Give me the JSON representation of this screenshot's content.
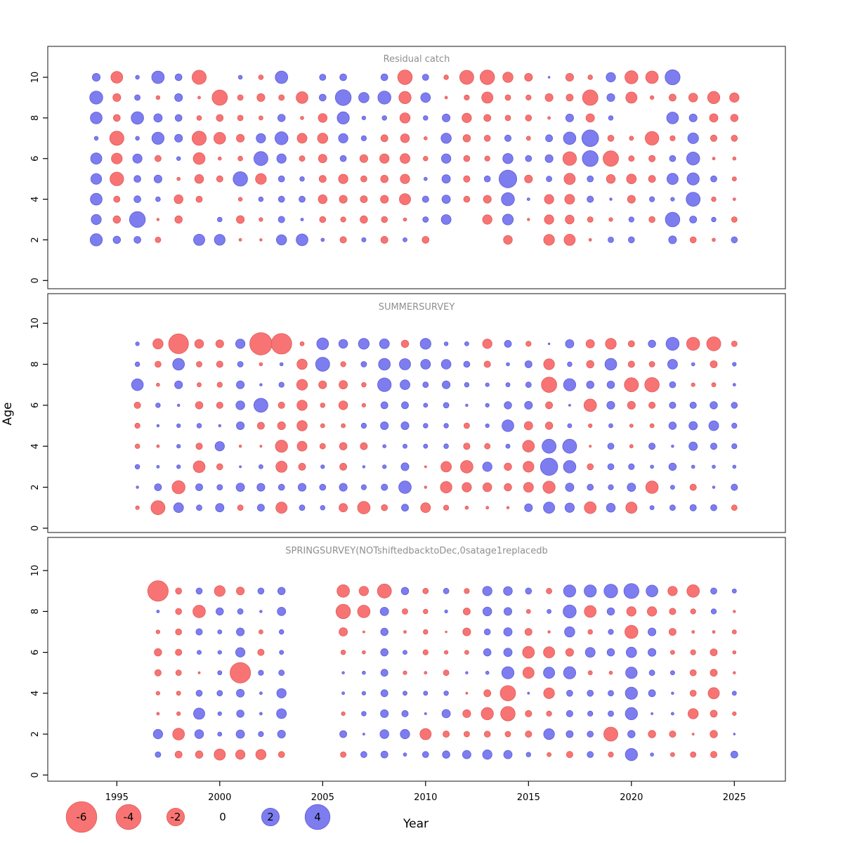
{
  "axes": {
    "xlabel": "Year",
    "ylabel": "Age",
    "x_ticks": [
      1995,
      2000,
      2005,
      2010,
      2015,
      2020,
      2025
    ],
    "y_ticks": [
      0,
      2,
      4,
      6,
      8,
      10
    ]
  },
  "colors": {
    "negative_fill": "#f87474",
    "negative_stroke": "#e05a55",
    "positive_fill": "#7d7df0",
    "positive_stroke": "#5c5cd8",
    "title_gray": "#8f8f8f",
    "axis_black": "#000000"
  },
  "legend": {
    "values": [
      -6,
      -4,
      -2,
      0,
      2,
      4
    ]
  },
  "chart_data": [
    {
      "type": "bubble",
      "title": "Residual catch",
      "ages": [
        10,
        9,
        8,
        7,
        6,
        5,
        4,
        3,
        2
      ],
      "years": [
        1994,
        1995,
        1996,
        1997,
        1998,
        1999,
        2000,
        2001,
        2002,
        2003,
        2004,
        2005,
        2006,
        2007,
        2008,
        2009,
        2010,
        2011,
        2012,
        2013,
        2014,
        2015,
        2016,
        2017,
        2018,
        2019,
        2020,
        2021,
        2022,
        2023,
        2024,
        2025
      ],
      "values": [
        [
          0.4,
          -0.9,
          0.1,
          1.0,
          0.3,
          -1.3,
          null,
          0.1,
          -0.15,
          1.0,
          null,
          0.25,
          0.3,
          null,
          0.3,
          -1.35,
          0.25,
          -0.14,
          -1.26,
          -1.35,
          -0.68,
          -0.4,
          0.02,
          -0.4,
          -0.14,
          0.56,
          -1.1,
          -1.0,
          1.45,
          null,
          null,
          null
        ],
        [
          1.1,
          -0.4,
          0.2,
          -0.1,
          0.4,
          -0.05,
          -1.5,
          -0.2,
          -0.4,
          -0.2,
          -0.9,
          0.3,
          1.6,
          0.7,
          1.1,
          -0.95,
          0.6,
          -0.05,
          -0.17,
          -0.81,
          -0.2,
          -0.17,
          -0.4,
          -0.32,
          -1.53,
          0.4,
          -0.8,
          -0.09,
          -0.32,
          -0.5,
          -0.95,
          -0.56
        ],
        [
          0.9,
          -0.3,
          1.0,
          0.45,
          0.3,
          -0.15,
          -0.3,
          -0.2,
          -0.11,
          0.36,
          -0.07,
          -0.5,
          0.95,
          0.09,
          0.14,
          -0.68,
          0.14,
          0.4,
          -0.56,
          -0.32,
          -0.2,
          -0.24,
          -0.05,
          0.4,
          -0.45,
          0.14,
          null,
          null,
          0.9,
          0.4,
          -0.45,
          -0.36
        ],
        [
          0.1,
          -1.3,
          0.1,
          0.95,
          0.4,
          -1.3,
          -0.9,
          -0.4,
          0.56,
          1.1,
          -0.62,
          -0.68,
          0.56,
          0.17,
          -0.32,
          -0.5,
          -0.07,
          0.68,
          -0.36,
          -0.24,
          0.27,
          -0.11,
          0.32,
          1.0,
          1.8,
          -0.24,
          -0.11,
          -1.2,
          -0.17,
          0.74,
          -0.27,
          -0.24
        ],
        [
          0.8,
          -0.75,
          0.55,
          -0.25,
          0.1,
          -0.9,
          -0.07,
          -0.15,
          1.26,
          0.56,
          -0.2,
          -0.45,
          0.24,
          -0.4,
          -0.56,
          -0.62,
          -0.14,
          0.56,
          -0.24,
          -0.17,
          0.68,
          0.24,
          0.4,
          -1.2,
          1.6,
          -1.53,
          -0.2,
          -0.27,
          0.24,
          1.1,
          -0.05,
          -0.07
        ],
        [
          0.75,
          -1.2,
          0.3,
          0.4,
          -0.07,
          -0.5,
          -0.25,
          1.35,
          -0.74,
          0.24,
          0.14,
          -0.32,
          -0.56,
          -0.24,
          -0.36,
          -0.56,
          0.07,
          0.45,
          -0.27,
          0.24,
          2.0,
          -0.4,
          0.2,
          -0.8,
          0.24,
          -0.5,
          -0.6,
          -0.32,
          0.81,
          0.95,
          0.24,
          -0.11
        ],
        [
          0.9,
          -0.25,
          0.3,
          0.15,
          -0.5,
          -0.25,
          null,
          -0.1,
          0.14,
          0.24,
          0.24,
          -0.5,
          -0.4,
          -0.32,
          -0.4,
          -0.81,
          0.27,
          0.45,
          -0.24,
          -0.4,
          1.1,
          0.05,
          -0.56,
          -0.62,
          0.27,
          0.04,
          -0.4,
          0.17,
          0.09,
          1.26,
          -0.14,
          -0.05
        ],
        [
          0.65,
          -0.35,
          1.6,
          -0.04,
          -0.35,
          null,
          0.15,
          -0.4,
          -0.09,
          0.27,
          0.05,
          -0.24,
          -0.17,
          -0.36,
          -0.24,
          -0.07,
          0.2,
          0.62,
          null,
          -0.56,
          0.74,
          -0.04,
          -0.56,
          -0.5,
          -0.2,
          -0.09,
          0.17,
          -0.24,
          1.35,
          0.32,
          0.14,
          -0.2
        ],
        [
          0.95,
          0.35,
          0.3,
          -0.2,
          null,
          0.8,
          0.75,
          -0.05,
          -0.04,
          0.68,
          0.9,
          0.07,
          -0.27,
          0.12,
          -0.32,
          0.11,
          -0.3,
          null,
          null,
          null,
          -0.5,
          null,
          -0.74,
          -0.81,
          -0.05,
          0.2,
          0.24,
          null,
          0.4,
          -0.24,
          -0.07,
          0.24
        ]
      ]
    },
    {
      "type": "bubble",
      "title": "SUMMERSURVEY",
      "ages": [
        9,
        8,
        7,
        6,
        5,
        4,
        3,
        2,
        1
      ],
      "years": [
        1996,
        1997,
        1998,
        1999,
        2000,
        2001,
        2002,
        2003,
        2004,
        2005,
        2006,
        2007,
        2008,
        2009,
        2010,
        2011,
        2012,
        2013,
        2014,
        2015,
        2016,
        2017,
        2018,
        2019,
        2020,
        2021,
        2022,
        2023,
        2024,
        2025
      ],
      "values": [
        [
          0.09,
          -0.68,
          -2.5,
          -0.5,
          -0.4,
          0.56,
          -3.2,
          -2.7,
          -0.11,
          0.9,
          0.5,
          0.74,
          0.62,
          -0.36,
          0.74,
          0.1,
          0.11,
          -0.56,
          0.32,
          -0.17,
          0.02,
          0.45,
          -0.45,
          -0.74,
          -0.25,
          0.36,
          1.1,
          -1.1,
          -1.26,
          -0.2
        ],
        [
          0.14,
          -0.24,
          0.9,
          -0.2,
          -0.27,
          0.2,
          -0.07,
          0.07,
          -0.68,
          1.26,
          -0.17,
          0.2,
          0.9,
          0.81,
          0.62,
          0.6,
          0.24,
          -0.27,
          0.07,
          0.32,
          -0.74,
          0.14,
          -0.36,
          0.9,
          -0.27,
          -0.2,
          0.62,
          0.07,
          -0.32,
          0.09
        ],
        [
          0.9,
          -0.07,
          0.4,
          -0.11,
          -0.17,
          0.4,
          0.04,
          0.17,
          -0.74,
          -0.4,
          -0.45,
          -0.14,
          1.2,
          0.62,
          0.2,
          0.4,
          0.14,
          0.09,
          0.11,
          0.2,
          -1.5,
          0.95,
          0.36,
          0.36,
          -1.26,
          -1.35,
          0.24,
          -0.09,
          -0.11,
          0.05
        ],
        [
          -0.27,
          0.14,
          0.04,
          -0.36,
          -0.27,
          0.5,
          1.26,
          -0.27,
          -0.68,
          -0.14,
          -0.5,
          -0.09,
          0.32,
          0.32,
          0.11,
          0.2,
          0.04,
          0.09,
          0.36,
          0.4,
          -0.32,
          0.03,
          -1.0,
          0.4,
          -0.4,
          -0.27,
          0.27,
          0.27,
          0.36,
          0.24
        ],
        [
          -0.17,
          0.04,
          0.09,
          0.14,
          0.04,
          0.4,
          -0.32,
          -0.4,
          -0.68,
          -0.11,
          -0.11,
          0.17,
          0.4,
          0.4,
          0.14,
          0.14,
          -0.2,
          0.09,
          0.9,
          -0.45,
          -0.36,
          0.11,
          -0.09,
          0.11,
          -0.08,
          -0.11,
          0.36,
          0.45,
          0.62,
          0.17
        ],
        [
          -0.14,
          -0.05,
          0.09,
          -0.27,
          0.56,
          -0.04,
          -0.03,
          -0.95,
          -0.62,
          -0.2,
          -0.36,
          -0.32,
          0.07,
          0.11,
          0.11,
          0.15,
          -0.27,
          -0.2,
          0.11,
          -0.9,
          1.26,
          1.26,
          -0.03,
          0.24,
          -0.08,
          0.27,
          0.04,
          0.45,
          0.27,
          0.17
        ],
        [
          0.14,
          0.05,
          0.09,
          -0.9,
          -0.24,
          0.03,
          0.11,
          -0.81,
          -0.32,
          0.09,
          -0.32,
          0.04,
          0.09,
          0.4,
          -0.03,
          -0.71,
          -1.0,
          0.56,
          -0.36,
          -0.74,
          1.9,
          1.0,
          -0.24,
          0.24,
          0.22,
          0.07,
          0.36,
          0.07,
          0.07,
          0.07
        ],
        [
          0.04,
          0.32,
          -1.1,
          0.32,
          0.2,
          0.45,
          0.4,
          0.24,
          0.4,
          0.24,
          0.4,
          0.17,
          0.27,
          1.0,
          -0.04,
          -0.85,
          -0.56,
          -0.5,
          -0.36,
          -0.62,
          -0.95,
          0.45,
          0.24,
          0.17,
          0.45,
          -1.0,
          0.11,
          -0.27,
          0.04,
          0.27
        ],
        [
          -0.09,
          -1.26,
          0.62,
          0.2,
          0.45,
          -0.2,
          0.32,
          -0.81,
          0.2,
          0.14,
          -0.45,
          -1.0,
          -0.24,
          0.32,
          -0.62,
          -0.17,
          -0.07,
          -0.05,
          -0.04,
          0.4,
          0.81,
          0.56,
          -0.9,
          0.5,
          -0.81,
          0.11,
          0.2,
          0.27,
          0.24,
          -0.2
        ]
      ]
    },
    {
      "type": "bubble",
      "title": "SPRINGSURVEY(NOTshiftedbacktoDec,0satage1replacedb",
      "ages": [
        9,
        8,
        7,
        6,
        5,
        4,
        3,
        2,
        1
      ],
      "years": [
        1997,
        1998,
        1999,
        2000,
        2001,
        2002,
        2003,
        2004,
        2005,
        2006,
        2007,
        2008,
        2009,
        2010,
        2011,
        2012,
        2013,
        2014,
        2015,
        2016,
        2017,
        2018,
        2019,
        2020,
        2021,
        2022,
        2023,
        2024,
        2025
      ],
      "values": [
        [
          -2.7,
          -0.24,
          0.24,
          -0.74,
          -0.4,
          0.24,
          0.36,
          null,
          null,
          -1.0,
          -0.56,
          -1.26,
          0.36,
          -0.2,
          0.2,
          -0.17,
          0.56,
          0.5,
          0.24,
          -0.2,
          0.95,
          0.95,
          1.2,
          1.45,
          0.9,
          -0.56,
          -1.0,
          0.24,
          0.11
        ],
        [
          0.05,
          -0.24,
          -1.0,
          0.36,
          0.2,
          0.04,
          0.45,
          null,
          null,
          -1.35,
          -1.0,
          0.45,
          -0.2,
          -0.14,
          0.06,
          -0.32,
          0.5,
          0.4,
          -0.11,
          0.11,
          1.1,
          -0.9,
          0.36,
          -0.56,
          -0.56,
          -0.27,
          -0.17,
          0.17,
          -0.04
        ],
        [
          -0.09,
          -0.24,
          0.27,
          0.11,
          0.4,
          -0.11,
          0.14,
          null,
          null,
          -0.45,
          -0.03,
          0.36,
          -0.05,
          -0.14,
          -0.02,
          -0.4,
          0.24,
          0.45,
          -0.32,
          -0.04,
          0.68,
          -0.14,
          0.17,
          -1.1,
          0.4,
          -0.32,
          -0.05,
          -0.05,
          -0.11
        ],
        [
          -0.36,
          -0.27,
          0.11,
          0.09,
          0.56,
          -0.27,
          0.11,
          null,
          null,
          -0.14,
          -0.07,
          0.36,
          0.11,
          -0.17,
          -0.09,
          -0.11,
          0.36,
          0.45,
          -0.9,
          -0.81,
          -0.4,
          0.62,
          0.36,
          0.7,
          0.4,
          -0.11,
          -0.17,
          -0.32,
          -0.07
        ],
        [
          -0.27,
          -0.2,
          -0.03,
          0.11,
          -2.7,
          0.17,
          0.2,
          null,
          null,
          0.04,
          0.07,
          0.32,
          -0.09,
          -0.05,
          -0.2,
          0.04,
          0.07,
          0.95,
          -0.81,
          0.81,
          0.95,
          -0.11,
          -0.07,
          0.85,
          0.2,
          0.11,
          -0.24,
          -0.32,
          -0.04
        ],
        [
          -0.09,
          -0.11,
          0.24,
          0.2,
          0.4,
          0.05,
          0.56,
          null,
          null,
          0.05,
          0.09,
          0.32,
          0.11,
          0.11,
          0.14,
          -0.03,
          -0.32,
          -1.5,
          0.03,
          -0.74,
          0.24,
          0.24,
          0.2,
          0.95,
          0.32,
          0.04,
          -0.24,
          -0.81,
          0.11
        ],
        [
          -0.05,
          -0.09,
          0.81,
          0.09,
          0.36,
          0.05,
          0.62,
          null,
          null,
          -0.09,
          0.14,
          0.4,
          0.27,
          0.03,
          0.45,
          -0.4,
          -0.95,
          -1.35,
          -0.27,
          -0.17,
          0.27,
          0.17,
          0.2,
          0.95,
          0.03,
          0.05,
          -0.68,
          -0.32,
          -0.09
        ],
        [
          0.56,
          -0.9,
          0.5,
          0.11,
          0.45,
          0.17,
          0.4,
          null,
          null,
          0.32,
          0.03,
          0.5,
          0.56,
          -0.81,
          -0.27,
          -0.2,
          -0.24,
          -0.2,
          -0.27,
          0.74,
          0.32,
          0.24,
          -1.26,
          0.35,
          -0.36,
          -0.27,
          -0.03,
          -0.36,
          0.02
        ],
        [
          0.2,
          -0.32,
          -0.36,
          -0.81,
          -0.56,
          -0.68,
          -0.24,
          null,
          null,
          -0.2,
          0.24,
          0.32,
          0.07,
          0.24,
          0.36,
          0.45,
          0.56,
          0.45,
          0.14,
          -0.11,
          -0.27,
          0.24,
          -0.17,
          0.95,
          0.07,
          -0.11,
          -0.2,
          -0.27,
          0.32
        ]
      ]
    }
  ]
}
